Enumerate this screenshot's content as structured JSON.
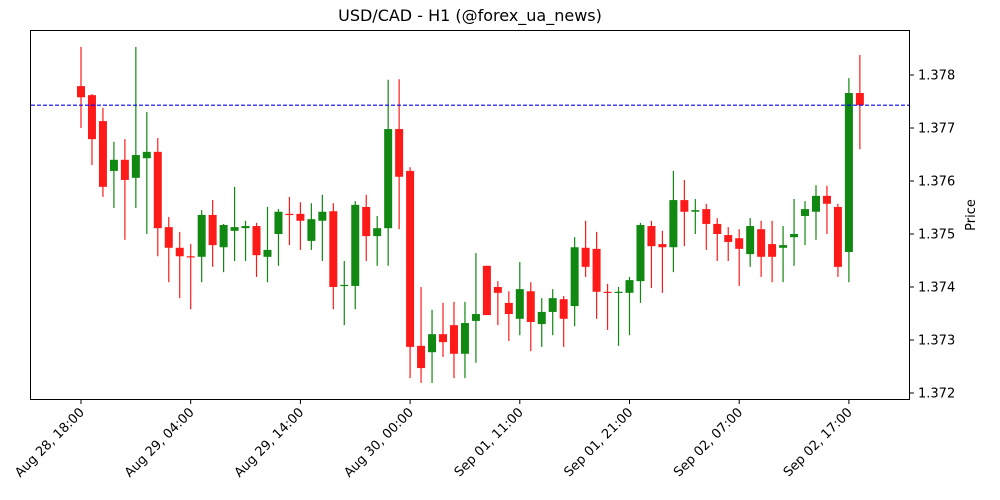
{
  "chart_data": {
    "type": "candlestick",
    "title": "USD/CAD - H1 (@forex_ua_news)",
    "xlabel": "",
    "ylabel": "Price",
    "ylim": [
      1.37181,
      1.37887
    ],
    "y_ticks": [
      "1.372",
      "1.373",
      "1.374",
      "1.375",
      "1.376",
      "1.377",
      "1.378"
    ],
    "y_tick_values": [
      1.372,
      1.373,
      1.374,
      1.375,
      1.376,
      1.377,
      1.378
    ],
    "x_ticks": [
      {
        "index": 0,
        "label": "Aug 28, 18:00"
      },
      {
        "index": 10,
        "label": "Aug 29, 04:00"
      },
      {
        "index": 20,
        "label": "Aug 29, 14:00"
      },
      {
        "index": 30,
        "label": "Aug 30, 00:00"
      },
      {
        "index": 40,
        "label": "Sep 01, 11:00"
      },
      {
        "index": 50,
        "label": "Sep 01, 21:00"
      },
      {
        "index": 60,
        "label": "Sep 02, 07:00"
      },
      {
        "index": 70,
        "label": "Sep 02, 17:00"
      }
    ],
    "grid": false,
    "legend": null,
    "reference_line": {
      "value": 1.37743,
      "style": "dashed",
      "color": "#0000ff"
    },
    "colors": {
      "up": "#118811",
      "down": "#ff1a1a"
    },
    "candles": [
      {
        "o": 1.37779,
        "h": 1.37853,
        "l": 1.377,
        "c": 1.37758
      },
      {
        "o": 1.37762,
        "h": 1.37764,
        "l": 1.3763,
        "c": 1.37679
      },
      {
        "o": 1.37713,
        "h": 1.37738,
        "l": 1.3757,
        "c": 1.37589
      },
      {
        "o": 1.37619,
        "h": 1.37674,
        "l": 1.37549,
        "c": 1.3764
      },
      {
        "o": 1.3764,
        "h": 1.37679,
        "l": 1.37489,
        "c": 1.37602
      },
      {
        "o": 1.37606,
        "h": 1.37853,
        "l": 1.37549,
        "c": 1.37649
      },
      {
        "o": 1.37643,
        "h": 1.3773,
        "l": 1.375,
        "c": 1.37655
      },
      {
        "o": 1.37655,
        "h": 1.37681,
        "l": 1.37458,
        "c": 1.37511
      },
      {
        "o": 1.37513,
        "h": 1.37532,
        "l": 1.37409,
        "c": 1.37474
      },
      {
        "o": 1.37474,
        "h": 1.37504,
        "l": 1.37379,
        "c": 1.37458
      },
      {
        "o": 1.37458,
        "h": 1.37481,
        "l": 1.37358,
        "c": 1.37457
      },
      {
        "o": 1.37457,
        "h": 1.37545,
        "l": 1.37409,
        "c": 1.37536
      },
      {
        "o": 1.37536,
        "h": 1.37564,
        "l": 1.37438,
        "c": 1.37479
      },
      {
        "o": 1.37475,
        "h": 1.37519,
        "l": 1.37428,
        "c": 1.37517
      },
      {
        "o": 1.37506,
        "h": 1.37589,
        "l": 1.37449,
        "c": 1.37513
      },
      {
        "o": 1.37511,
        "h": 1.37525,
        "l": 1.37449,
        "c": 1.37515
      },
      {
        "o": 1.37515,
        "h": 1.37521,
        "l": 1.37419,
        "c": 1.3746
      },
      {
        "o": 1.37457,
        "h": 1.37551,
        "l": 1.37409,
        "c": 1.3747
      },
      {
        "o": 1.375,
        "h": 1.37547,
        "l": 1.3744,
        "c": 1.37542
      },
      {
        "o": 1.37538,
        "h": 1.3757,
        "l": 1.37479,
        "c": 1.37536
      },
      {
        "o": 1.37538,
        "h": 1.3756,
        "l": 1.3747,
        "c": 1.37525
      },
      {
        "o": 1.37487,
        "h": 1.37558,
        "l": 1.3747,
        "c": 1.37528
      },
      {
        "o": 1.37525,
        "h": 1.37574,
        "l": 1.37449,
        "c": 1.37542
      },
      {
        "o": 1.37543,
        "h": 1.37558,
        "l": 1.37358,
        "c": 1.374
      },
      {
        "o": 1.37402,
        "h": 1.37449,
        "l": 1.37328,
        "c": 1.37404
      },
      {
        "o": 1.37402,
        "h": 1.37562,
        "l": 1.37358,
        "c": 1.37555
      },
      {
        "o": 1.37551,
        "h": 1.37574,
        "l": 1.37449,
        "c": 1.37496
      },
      {
        "o": 1.37496,
        "h": 1.37534,
        "l": 1.3744,
        "c": 1.37511
      },
      {
        "o": 1.37511,
        "h": 1.37791,
        "l": 1.3744,
        "c": 1.37698
      },
      {
        "o": 1.37698,
        "h": 1.37792,
        "l": 1.37509,
        "c": 1.37608
      },
      {
        "o": 1.37619,
        "h": 1.37626,
        "l": 1.37228,
        "c": 1.37287
      },
      {
        "o": 1.37289,
        "h": 1.374,
        "l": 1.37219,
        "c": 1.37247
      },
      {
        "o": 1.37277,
        "h": 1.37357,
        "l": 1.37219,
        "c": 1.37311
      },
      {
        "o": 1.37311,
        "h": 1.3737,
        "l": 1.37268,
        "c": 1.37296
      },
      {
        "o": 1.37328,
        "h": 1.37372,
        "l": 1.37228,
        "c": 1.37274
      },
      {
        "o": 1.37274,
        "h": 1.37372,
        "l": 1.37228,
        "c": 1.37332
      },
      {
        "o": 1.37336,
        "h": 1.37464,
        "l": 1.37257,
        "c": 1.37349
      },
      {
        "o": 1.3744,
        "h": 1.3744,
        "l": 1.37347,
        "c": 1.37347
      },
      {
        "o": 1.374,
        "h": 1.37411,
        "l": 1.37328,
        "c": 1.37389
      },
      {
        "o": 1.3737,
        "h": 1.37392,
        "l": 1.37298,
        "c": 1.37349
      },
      {
        "o": 1.3734,
        "h": 1.37447,
        "l": 1.37309,
        "c": 1.37396
      },
      {
        "o": 1.37392,
        "h": 1.37409,
        "l": 1.37279,
        "c": 1.37334
      },
      {
        "o": 1.3733,
        "h": 1.37379,
        "l": 1.37287,
        "c": 1.37353
      },
      {
        "o": 1.37353,
        "h": 1.37396,
        "l": 1.37309,
        "c": 1.37379
      },
      {
        "o": 1.37377,
        "h": 1.37383,
        "l": 1.37287,
        "c": 1.3734
      },
      {
        "o": 1.37364,
        "h": 1.37494,
        "l": 1.37326,
        "c": 1.37475
      },
      {
        "o": 1.37474,
        "h": 1.37525,
        "l": 1.37419,
        "c": 1.37438
      },
      {
        "o": 1.37472,
        "h": 1.37504,
        "l": 1.3734,
        "c": 1.37391
      },
      {
        "o": 1.37391,
        "h": 1.37406,
        "l": 1.37319,
        "c": 1.37389
      },
      {
        "o": 1.37389,
        "h": 1.374,
        "l": 1.37289,
        "c": 1.37391
      },
      {
        "o": 1.37389,
        "h": 1.37419,
        "l": 1.37309,
        "c": 1.37413
      },
      {
        "o": 1.37411,
        "h": 1.37521,
        "l": 1.3737,
        "c": 1.37517
      },
      {
        "o": 1.37515,
        "h": 1.37525,
        "l": 1.37398,
        "c": 1.37477
      },
      {
        "o": 1.37481,
        "h": 1.37506,
        "l": 1.37389,
        "c": 1.37475
      },
      {
        "o": 1.37475,
        "h": 1.37619,
        "l": 1.37428,
        "c": 1.37564
      },
      {
        "o": 1.37564,
        "h": 1.37602,
        "l": 1.37477,
        "c": 1.37542
      },
      {
        "o": 1.37542,
        "h": 1.37566,
        "l": 1.375,
        "c": 1.37545
      },
      {
        "o": 1.37547,
        "h": 1.37557,
        "l": 1.3747,
        "c": 1.37519
      },
      {
        "o": 1.37519,
        "h": 1.3753,
        "l": 1.37449,
        "c": 1.375
      },
      {
        "o": 1.37498,
        "h": 1.37513,
        "l": 1.37449,
        "c": 1.37485
      },
      {
        "o": 1.37492,
        "h": 1.37509,
        "l": 1.37402,
        "c": 1.37472
      },
      {
        "o": 1.37462,
        "h": 1.3753,
        "l": 1.37438,
        "c": 1.37515
      },
      {
        "o": 1.37509,
        "h": 1.37525,
        "l": 1.37419,
        "c": 1.37457
      },
      {
        "o": 1.37481,
        "h": 1.37525,
        "l": 1.37409,
        "c": 1.37457
      },
      {
        "o": 1.37474,
        "h": 1.37515,
        "l": 1.37409,
        "c": 1.37479
      },
      {
        "o": 1.37494,
        "h": 1.37566,
        "l": 1.3744,
        "c": 1.375
      },
      {
        "o": 1.37534,
        "h": 1.37562,
        "l": 1.37479,
        "c": 1.37547
      },
      {
        "o": 1.37542,
        "h": 1.37592,
        "l": 1.37489,
        "c": 1.37572
      },
      {
        "o": 1.37572,
        "h": 1.37591,
        "l": 1.375,
        "c": 1.37557
      },
      {
        "o": 1.37551,
        "h": 1.37557,
        "l": 1.37419,
        "c": 1.37438
      },
      {
        "o": 1.37466,
        "h": 1.37794,
        "l": 1.37409,
        "c": 1.37766
      },
      {
        "o": 1.37766,
        "h": 1.37838,
        "l": 1.3766,
        "c": 1.37743
      }
    ]
  }
}
